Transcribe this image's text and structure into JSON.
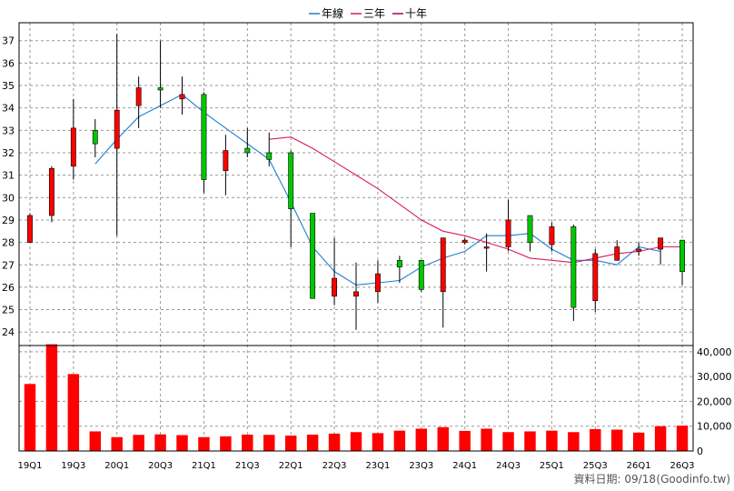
{
  "legend": [
    {
      "label": "年線",
      "color": "#1f7ecf"
    },
    {
      "label": "三年",
      "color": "#d81b60"
    },
    {
      "label": "十年",
      "color": "#a3005e"
    }
  ],
  "footer": {
    "date_label": "資料日期: 09/18",
    "source": "(Goodinfo.tw)"
  },
  "chart_data": [
    {
      "type": "candlestick",
      "y_ticks": [
        24,
        25,
        26,
        27,
        28,
        29,
        30,
        31,
        32,
        33,
        34,
        35,
        36,
        37
      ],
      "ylim": [
        23.4,
        37.8
      ],
      "grid": true,
      "legend_position": "top-center",
      "up_color": "#ff0000",
      "down_color": "#00c800",
      "x_tick_labels": [
        "19Q1",
        "19Q3",
        "20Q1",
        "20Q3",
        "21Q1",
        "21Q3",
        "22Q1",
        "22Q3",
        "23Q1",
        "23Q3",
        "24Q1",
        "24Q3",
        "25Q1",
        "25Q3",
        "26Q1",
        "26Q3"
      ],
      "x_tick_every": 2,
      "candles": [
        {
          "open": 28.0,
          "close": 29.2,
          "high": 29.3,
          "low": 28.0
        },
        {
          "open": 29.2,
          "close": 31.3,
          "high": 31.4,
          "low": 28.9
        },
        {
          "open": 31.4,
          "close": 33.1,
          "high": 34.4,
          "low": 30.8
        },
        {
          "open": 33.0,
          "close": 32.4,
          "high": 33.5,
          "low": 31.8
        },
        {
          "open": 32.2,
          "close": 33.9,
          "high": 37.3,
          "low": 28.3
        },
        {
          "open": 34.1,
          "close": 34.9,
          "high": 35.4,
          "low": 33.1
        },
        {
          "open": 34.9,
          "close": 34.8,
          "high": 37.0,
          "low": 34.0
        },
        {
          "open": 34.4,
          "close": 34.6,
          "high": 35.4,
          "low": 33.7
        },
        {
          "open": 34.6,
          "close": 30.8,
          "high": 34.7,
          "low": 30.2
        },
        {
          "open": 31.2,
          "close": 32.1,
          "high": 32.8,
          "low": 30.1
        },
        {
          "open": 32.2,
          "close": 32.0,
          "high": 33.1,
          "low": 31.8
        },
        {
          "open": 32.0,
          "close": 31.7,
          "high": 32.9,
          "low": 31.4
        },
        {
          "open": 32.0,
          "close": 29.5,
          "high": 32.1,
          "low": 27.8
        },
        {
          "open": 29.3,
          "close": 25.5,
          "high": 29.3,
          "low": 25.5
        },
        {
          "open": 25.6,
          "close": 26.4,
          "high": 28.2,
          "low": 25.2
        },
        {
          "open": 25.6,
          "close": 25.8,
          "high": 27.1,
          "low": 24.1
        },
        {
          "open": 25.8,
          "close": 26.6,
          "high": 27.2,
          "low": 25.3
        },
        {
          "open": 27.2,
          "close": 26.9,
          "high": 27.4,
          "low": 26.2
        },
        {
          "open": 27.2,
          "close": 25.9,
          "high": 27.2,
          "low": 25.8
        },
        {
          "open": 25.8,
          "close": 28.2,
          "high": 28.2,
          "low": 24.2
        },
        {
          "open": 28.0,
          "close": 28.1,
          "high": 28.2,
          "low": 27.9
        },
        {
          "open": 27.8,
          "close": 27.8,
          "high": 28.4,
          "low": 26.7
        },
        {
          "open": 27.8,
          "close": 29.0,
          "high": 29.9,
          "low": 27.6
        },
        {
          "open": 29.2,
          "close": 28.0,
          "high": 29.2,
          "low": 27.6
        },
        {
          "open": 27.9,
          "close": 28.7,
          "high": 28.9,
          "low": 27.6
        },
        {
          "open": 28.7,
          "close": 25.1,
          "high": 28.8,
          "low": 24.5
        },
        {
          "open": 25.4,
          "close": 27.5,
          "high": 27.7,
          "low": 24.9
        },
        {
          "open": 27.2,
          "close": 27.8,
          "high": 28.1,
          "low": 27.2
        },
        {
          "open": 27.6,
          "close": 27.7,
          "high": 28.0,
          "low": 27.4
        },
        {
          "open": 27.7,
          "close": 28.2,
          "high": 28.2,
          "low": 27.0
        },
        {
          "open": 28.1,
          "close": 26.7,
          "high": 28.1,
          "low": 26.1
        }
      ],
      "series": [
        {
          "name": "年線",
          "color": "#1f7ecf",
          "start_index": 3,
          "values": [
            31.5,
            32.6,
            33.6,
            34.1,
            34.6,
            33.8,
            33.1,
            32.4,
            31.7,
            29.8,
            27.8,
            26.7,
            26.1,
            26.2,
            26.3,
            26.9,
            27.3,
            27.6,
            28.3,
            28.3,
            28.4,
            27.7,
            27.2,
            27.2,
            27.0,
            27.8,
            27.6
          ]
        },
        {
          "name": "三年",
          "color": "#d81b60",
          "start_index": 11,
          "values": [
            32.6,
            32.7,
            32.2,
            31.6,
            31.0,
            30.4,
            29.7,
            29.0,
            28.5,
            28.3,
            28.0,
            27.7,
            27.3,
            27.2,
            27.1,
            27.3,
            27.5,
            27.6,
            27.8,
            27.8
          ]
        }
      ]
    },
    {
      "type": "bar",
      "y_ticks": [
        0,
        10000,
        20000,
        30000,
        40000
      ],
      "y_tick_labels": [
        "0",
        "10,000",
        "20,000",
        "30,000",
        "40,000"
      ],
      "ylim": [
        0,
        42500
      ],
      "grid": true,
      "color": "#ff0000",
      "values": [
        27000,
        43000,
        31000,
        7900,
        5600,
        6500,
        6700,
        6400,
        5600,
        5900,
        6600,
        6500,
        6200,
        6600,
        7000,
        7600,
        7200,
        8200,
        9000,
        9600,
        8100,
        9000,
        7600,
        7900,
        8200,
        7600,
        8800,
        8600,
        7400,
        10000,
        10200
      ]
    }
  ]
}
